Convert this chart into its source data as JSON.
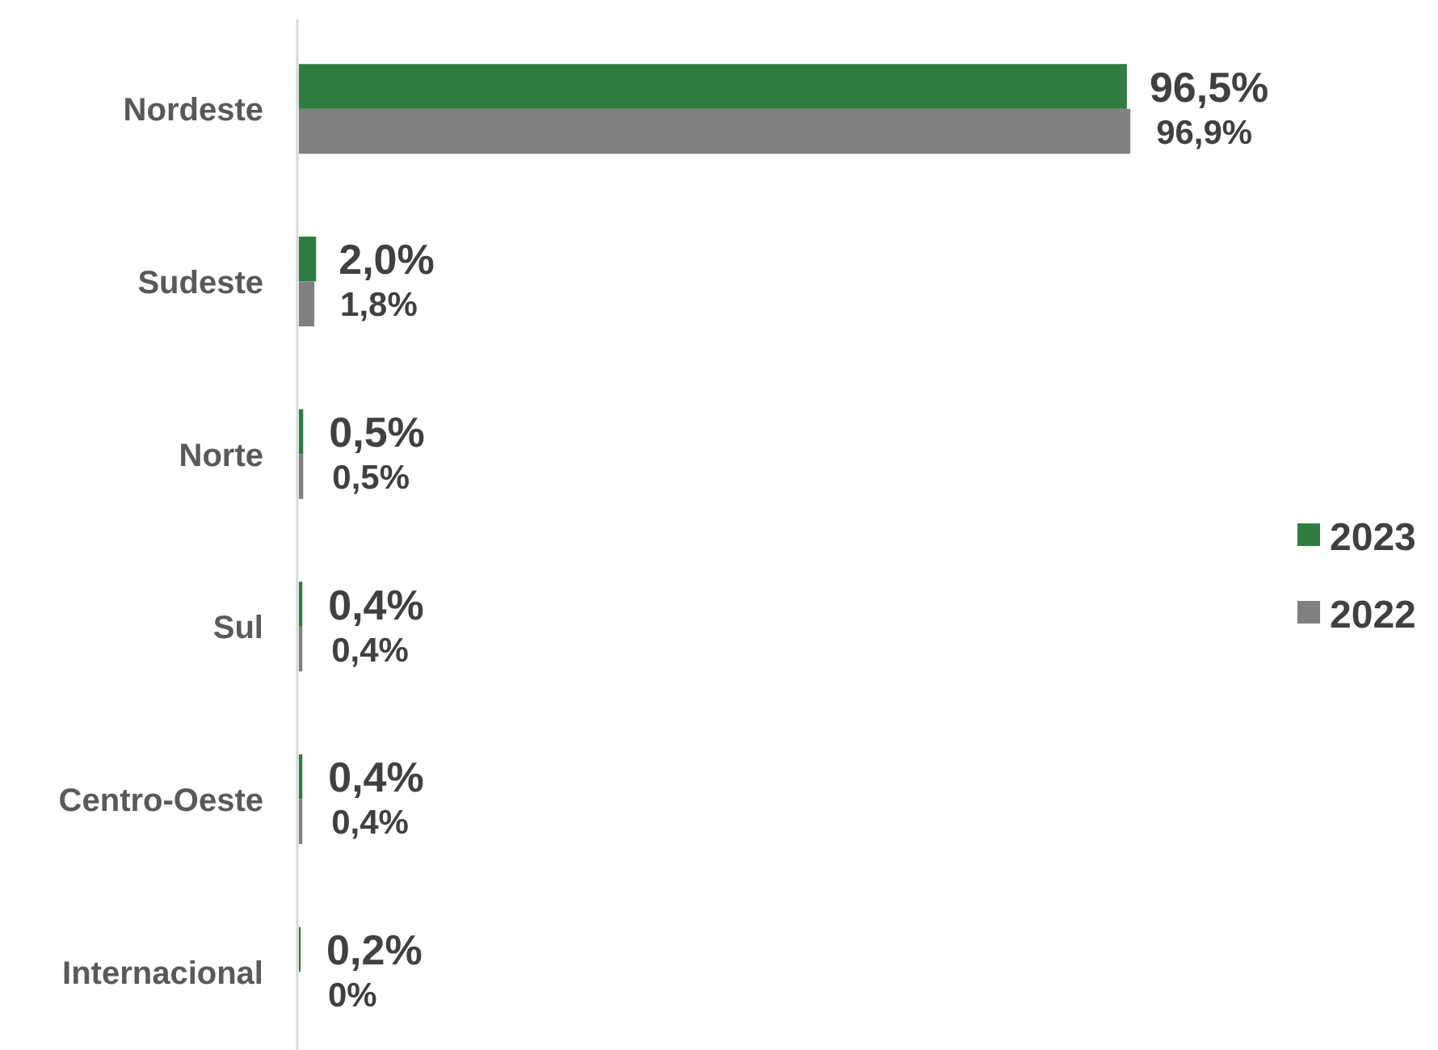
{
  "chart_data": {
    "type": "bar",
    "orientation": "horizontal",
    "categories": [
      "Nordeste",
      "Sudeste",
      "Norte",
      "Sul",
      "Centro-Oeste",
      "Internacional"
    ],
    "series": [
      {
        "name": "2023",
        "color": "#2e7d3e",
        "values": [
          96.5,
          2.0,
          0.5,
          0.4,
          0.4,
          0.2
        ],
        "value_labels": [
          "96,5%",
          "2,0%",
          "0,5%",
          "0,4%",
          "0,4%",
          "0,2%"
        ]
      },
      {
        "name": "2022",
        "color": "#808080",
        "values": [
          96.9,
          1.8,
          0.5,
          0.4,
          0.4,
          0
        ],
        "value_labels": [
          "96,9%",
          "1,8%",
          "0,5%",
          "0,4%",
          "0,4%",
          "0%"
        ]
      }
    ],
    "legend": "right"
  }
}
